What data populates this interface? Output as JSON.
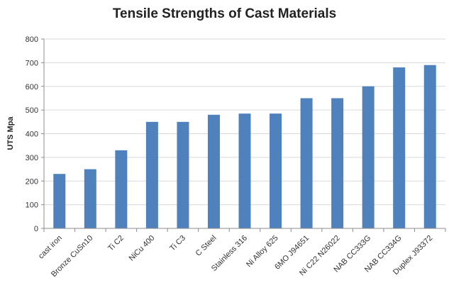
{
  "chart_data": {
    "type": "bar",
    "title": "Tensile Strengths of Cast Materials",
    "xlabel": "",
    "ylabel": "UTS Mpa",
    "ylim": [
      0,
      800
    ],
    "yticks": [
      "0",
      "100",
      "200",
      "300",
      "400",
      "500",
      "600",
      "700",
      "800"
    ],
    "grid": true,
    "legend": "none",
    "bar_color": "#4f81bd",
    "categories": [
      "cast iron",
      "Bronze CuSn10",
      "Ti C2",
      "NiCu 400",
      "Ti C3",
      "C Steel",
      "Stainless 316",
      "Ni Alloy 625",
      "6MO J94651",
      "Ni C22 N26022",
      "NAB CC333G",
      "NAB  CC334G",
      "Duplex J93372"
    ],
    "values": [
      230,
      250,
      330,
      450,
      450,
      480,
      485,
      485,
      550,
      550,
      600,
      680,
      690
    ]
  }
}
